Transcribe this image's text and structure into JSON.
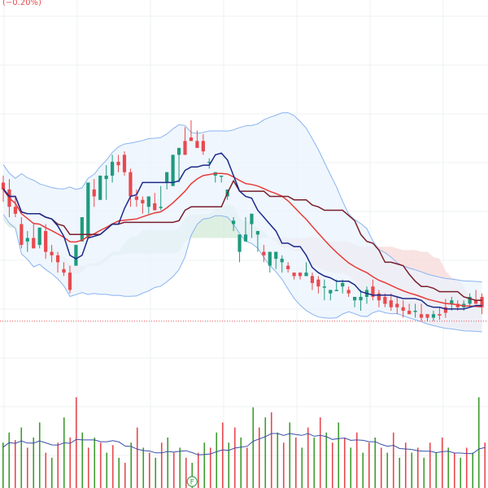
{
  "header": {
    "change_text": "(−0.20%)"
  },
  "colors": {
    "up": "#1f9a7f",
    "down": "#e8494f",
    "vol_up": "#3f9b2e",
    "vol_down": "#e8494f",
    "vol_avg": "#3a4fa8",
    "bb": "#8ab4f0",
    "bb_fill": "#eaf3fc",
    "tenkan": "#1b2a8c",
    "kijun": "#7a1f2b",
    "ma": "#e83a3a",
    "cloud_bull": "#cfe8d4",
    "cloud_bear": "#f7d5d5",
    "grid": "#eef0f3",
    "price_line": "#e8494f",
    "event_marker": "#3fa34d"
  },
  "chart_data": {
    "type": "candlestick",
    "title": "",
    "price_line": 180,
    "event_marker": {
      "label": "F",
      "index": 31
    },
    "ohlc": [
      [
        380,
        352,
        390,
        370
      ],
      [
        370,
        330,
        385,
        345
      ],
      [
        345,
        330,
        360,
        335
      ],
      [
        320,
        285,
        330,
        290
      ],
      [
        295,
        280,
        310,
        300
      ],
      [
        300,
        310,
        320,
        285
      ],
      [
        290,
        285,
        315,
        315
      ],
      [
        310,
        270,
        320,
        280
      ],
      [
        280,
        265,
        290,
        275
      ],
      [
        275,
        250,
        280,
        265
      ],
      [
        255,
        245,
        265,
        250
      ],
      [
        250,
        220,
        260,
        225
      ],
      [
        260,
        270,
        275,
        290
      ],
      [
        295,
        320,
        300,
        330
      ],
      [
        300,
        370,
        315,
        380
      ],
      [
        370,
        345,
        385,
        360
      ],
      [
        355,
        365,
        380,
        390
      ],
      [
        385,
        355,
        405,
        390
      ],
      [
        390,
        380,
        420,
        410
      ],
      [
        410,
        395,
        420,
        405
      ],
      [
        420,
        390,
        425,
        395
      ],
      [
        395,
        345,
        400,
        360
      ],
      [
        360,
        345,
        370,
        355
      ],
      [
        355,
        335,
        360,
        350
      ],
      [
        345,
        335,
        360,
        360
      ],
      [
        350,
        340,
        365,
        340
      ],
      [
        345,
        340,
        375,
        345
      ],
      [
        380,
        370,
        390,
        395
      ],
      [
        375,
        400,
        420,
        420
      ],
      [
        420,
        380,
        430,
        430
      ],
      [
        440,
        445,
        460,
        420
      ],
      [
        445,
        465,
        470,
        440
      ],
      [
        440,
        445,
        455,
        430
      ],
      [
        440,
        420,
        450,
        425
      ],
      [
        410,
        400,
        415,
        410
      ],
      [
        390,
        380,
        395,
        395
      ],
      [
        390,
        380,
        385,
        390
      ],
      [
        360,
        355,
        365,
        370
      ],
      [
        320,
        310,
        330,
        325
      ],
      [
        280,
        265,
        300,
        305
      ],
      [
        295,
        300,
        330,
        305
      ],
      [
        320,
        300,
        330,
        335
      ],
      [
        305,
        280,
        310,
        310
      ],
      [
        280,
        265,
        290,
        275
      ],
      [
        260,
        250,
        270,
        280
      ],
      [
        270,
        255,
        275,
        280
      ],
      [
        265,
        250,
        275,
        270
      ],
      [
        260,
        250,
        265,
        255
      ],
      [
        250,
        240,
        250,
        245
      ],
      [
        250,
        240,
        250,
        245
      ],
      [
        245,
        250,
        265,
        250
      ],
      [
        245,
        225,
        250,
        235
      ],
      [
        240,
        220,
        245,
        230
      ],
      [
        230,
        210,
        240,
        230
      ],
      [
        220,
        210,
        225,
        225
      ],
      [
        225,
        225,
        240,
        225
      ],
      [
        230,
        220,
        240,
        235
      ],
      [
        225,
        215,
        230,
        220
      ],
      [
        210,
        200,
        215,
        215
      ],
      [
        210,
        195,
        225,
        215
      ],
      [
        215,
        205,
        230,
        225
      ],
      [
        230,
        210,
        240,
        215
      ],
      [
        220,
        200,
        225,
        210
      ],
      [
        215,
        200,
        220,
        205
      ],
      [
        210,
        195,
        220,
        200
      ],
      [
        205,
        190,
        215,
        200
      ],
      [
        200,
        185,
        210,
        195
      ],
      [
        195,
        190,
        205,
        190
      ],
      [
        195,
        185,
        205,
        195
      ],
      [
        190,
        180,
        205,
        185
      ],
      [
        190,
        180,
        190,
        185
      ],
      [
        185,
        180,
        195,
        190
      ],
      [
        190,
        182,
        200,
        188
      ],
      [
        200,
        185,
        212,
        192
      ],
      [
        205,
        195,
        215,
        210
      ],
      [
        205,
        195,
        210,
        200
      ],
      [
        200,
        195,
        210,
        205
      ],
      [
        205,
        200,
        220,
        215
      ],
      [
        210,
        215,
        225,
        205
      ],
      [
        215,
        190,
        220,
        200
      ]
    ],
    "volume": [
      [
        0.9,
        1
      ],
      [
        1.1,
        1
      ],
      [
        0.95,
        0
      ],
      [
        1.2,
        1
      ],
      [
        0.8,
        0
      ],
      [
        1.0,
        1
      ],
      [
        1.3,
        1
      ],
      [
        0.7,
        0
      ],
      [
        0.6,
        1
      ],
      [
        0.9,
        0
      ],
      [
        1.4,
        1
      ],
      [
        1.0,
        0
      ],
      [
        1.8,
        0
      ],
      [
        1.1,
        1
      ],
      [
        0.8,
        0
      ],
      [
        1.0,
        1
      ],
      [
        0.9,
        0
      ],
      [
        0.7,
        1
      ],
      [
        0.85,
        0
      ],
      [
        0.6,
        1
      ],
      [
        0.5,
        0
      ],
      [
        0.9,
        1
      ],
      [
        1.2,
        0
      ],
      [
        0.8,
        1
      ],
      [
        0.7,
        0
      ],
      [
        0.6,
        1
      ],
      [
        0.9,
        0
      ],
      [
        1.0,
        1
      ],
      [
        0.7,
        0
      ],
      [
        0.8,
        1
      ],
      [
        0.6,
        0
      ],
      [
        0.5,
        1
      ],
      [
        0.7,
        0
      ],
      [
        0.9,
        1
      ],
      [
        0.8,
        0
      ],
      [
        1.1,
        1
      ],
      [
        1.3,
        0
      ],
      [
        0.9,
        1
      ],
      [
        1.2,
        0
      ],
      [
        1.0,
        1
      ],
      [
        0.8,
        0
      ],
      [
        1.6,
        1
      ],
      [
        1.2,
        0
      ],
      [
        1.4,
        1
      ],
      [
        1.5,
        0
      ],
      [
        1.1,
        1
      ],
      [
        0.9,
        0
      ],
      [
        1.3,
        1
      ],
      [
        1.0,
        0
      ],
      [
        0.8,
        1
      ],
      [
        1.2,
        0
      ],
      [
        1.0,
        1
      ],
      [
        1.4,
        0
      ],
      [
        1.1,
        1
      ],
      [
        0.9,
        0
      ],
      [
        1.3,
        1
      ],
      [
        1.0,
        0
      ],
      [
        0.8,
        1
      ],
      [
        1.1,
        0
      ],
      [
        0.7,
        1
      ],
      [
        0.9,
        0
      ],
      [
        1.0,
        1
      ],
      [
        0.8,
        0
      ],
      [
        0.7,
        1
      ],
      [
        1.1,
        0
      ],
      [
        0.6,
        1
      ],
      [
        0.9,
        0
      ],
      [
        0.7,
        1
      ],
      [
        0.8,
        0
      ],
      [
        0.6,
        1
      ],
      [
        0.9,
        0
      ],
      [
        0.7,
        1
      ],
      [
        1.0,
        0
      ],
      [
        0.8,
        1
      ],
      [
        0.7,
        0
      ],
      [
        0.6,
        1
      ],
      [
        0.8,
        0
      ],
      [
        0.7,
        1
      ],
      [
        1.8,
        1
      ],
      [
        0.9,
        0
      ]
    ]
  }
}
